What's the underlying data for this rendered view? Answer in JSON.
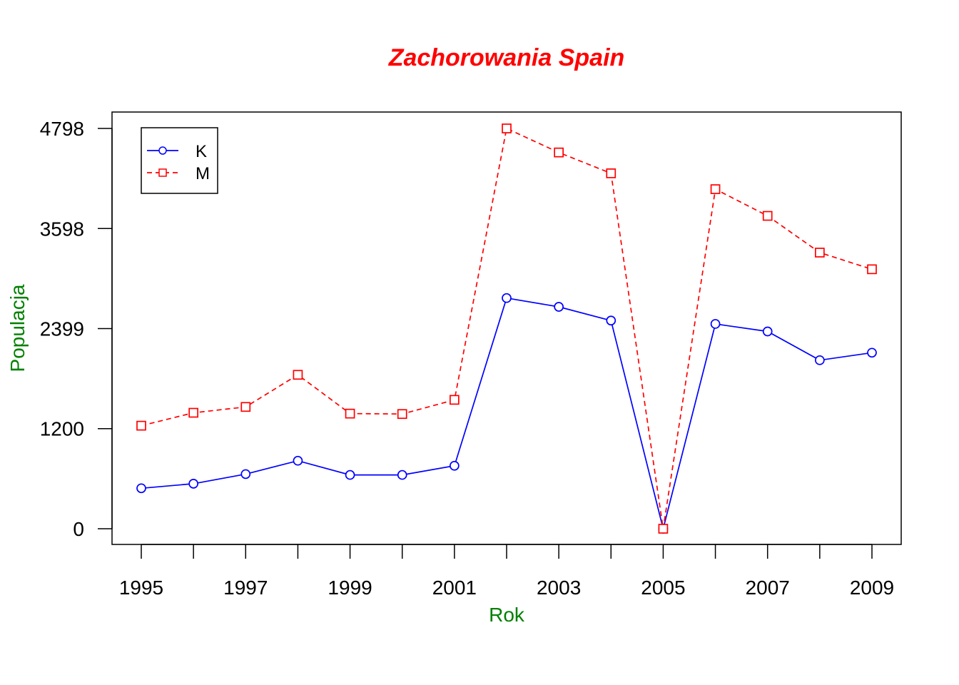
{
  "chart_data": {
    "type": "line",
    "title": "Zachorowania Spain",
    "xlabel": "Rok",
    "ylabel": "Populacja",
    "x": [
      1995,
      1996,
      1997,
      1998,
      1999,
      2000,
      2001,
      2002,
      2003,
      2004,
      2005,
      2006,
      2007,
      2008,
      2009
    ],
    "x_tick_labels": [
      "1995",
      "1997",
      "1999",
      "2001",
      "2003",
      "2005",
      "2007",
      "2009"
    ],
    "y_ticks": [
      0,
      1200,
      2399,
      3598,
      4798
    ],
    "y_tick_labels": [
      "0",
      "1200",
      "2399",
      "3598",
      "4798"
    ],
    "xlim": [
      1995,
      2009
    ],
    "ylim": [
      0,
      4798
    ],
    "grid": false,
    "legend_position": "top-left",
    "series": [
      {
        "name": "K",
        "color": "#0000ff",
        "marker": "circle",
        "line_style": "solid",
        "values": [
          485,
          540,
          655,
          815,
          645,
          645,
          755,
          2765,
          2660,
          2495,
          0,
          2455,
          2365,
          2020,
          2110
        ]
      },
      {
        "name": "M",
        "color": "#ff0000",
        "marker": "square",
        "line_style": "dashed",
        "values": [
          1235,
          1390,
          1460,
          1845,
          1380,
          1375,
          1545,
          4798,
          4510,
          4260,
          0,
          4070,
          3750,
          3310,
          3110
        ]
      }
    ],
    "colors": {
      "title": "#ff0000",
      "axis_title": "#008000",
      "axis": "#000000"
    }
  }
}
